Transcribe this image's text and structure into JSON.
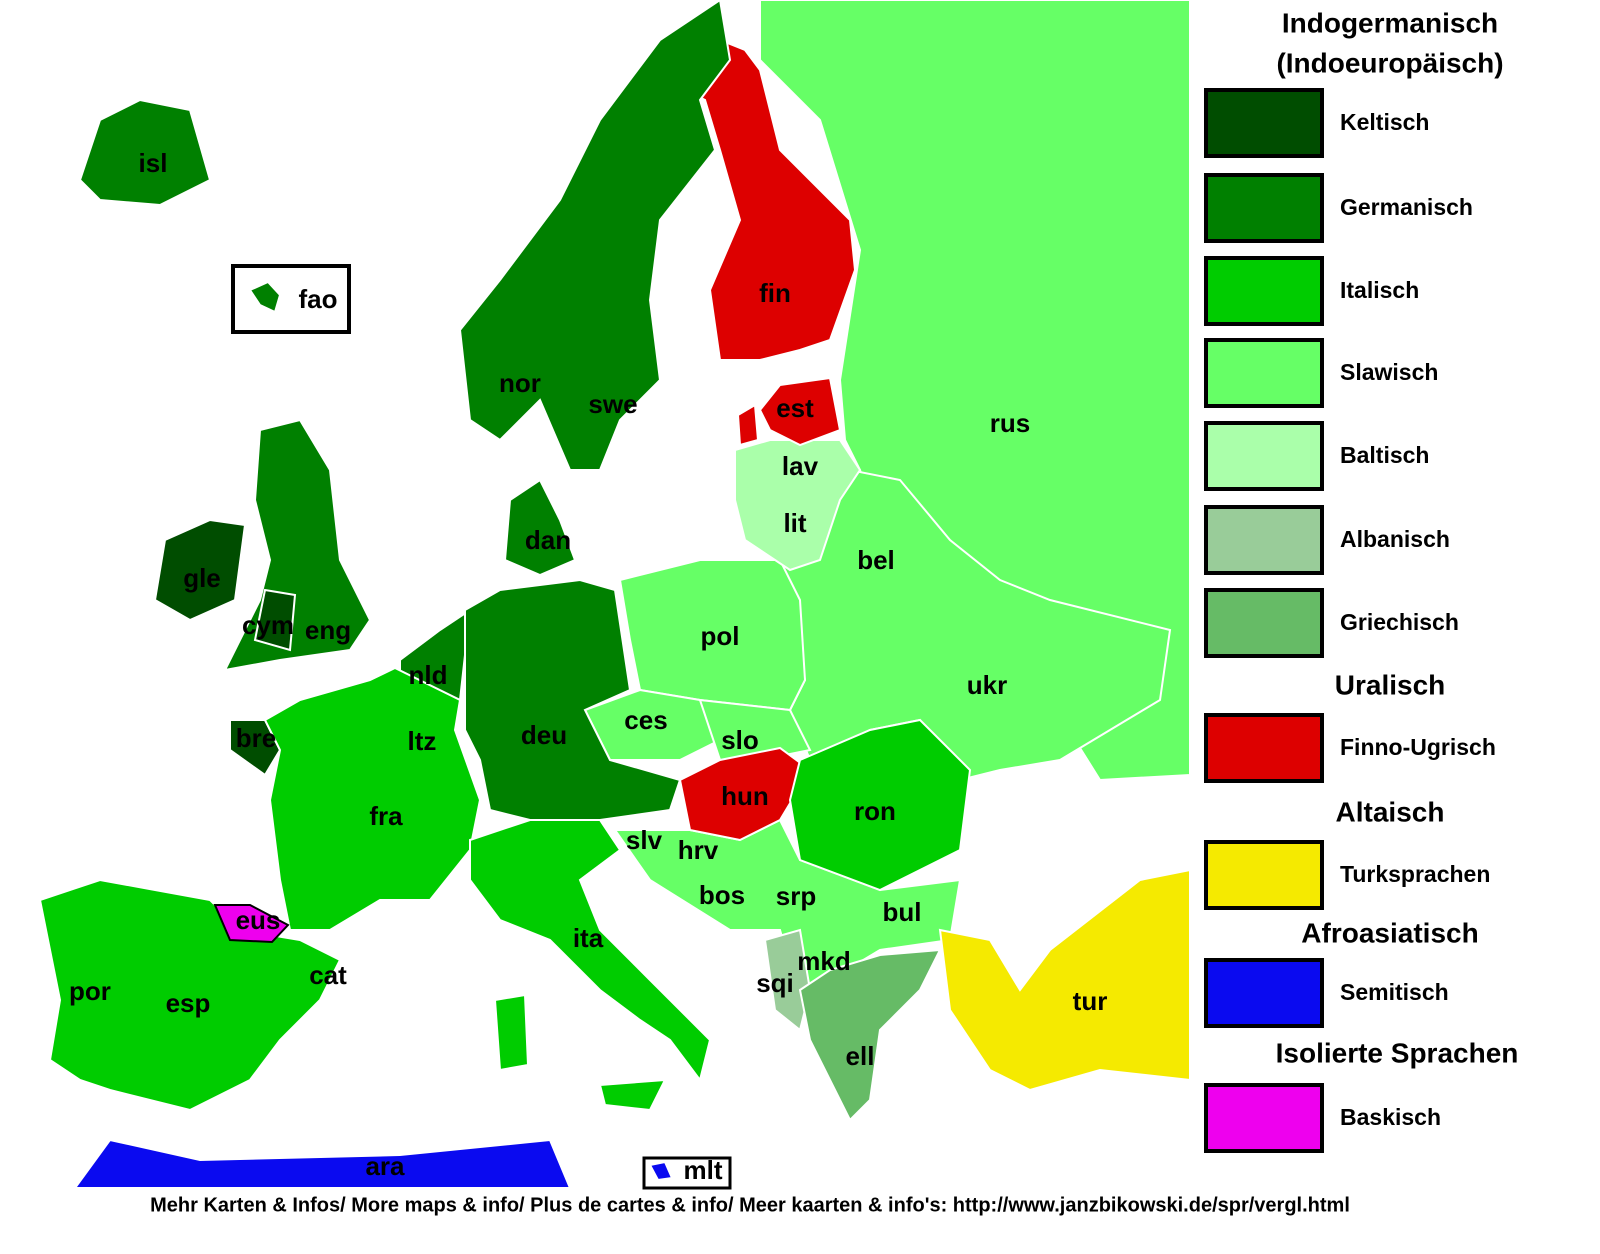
{
  "legend": {
    "groups": [
      {
        "title": "Indogermanisch",
        "subtitle": "(Indoeuropäisch)",
        "items": [
          {
            "label": "Keltisch",
            "color": "#004d00"
          },
          {
            "label": "Germanisch",
            "color": "#008000"
          },
          {
            "label": "Italisch",
            "color": "#00cc00"
          },
          {
            "label": "Slawisch",
            "color": "#66ff66"
          },
          {
            "label": "Baltisch",
            "color": "#aaffaa"
          },
          {
            "label": "Albanisch",
            "color": "#99cc99"
          },
          {
            "label": "Griechisch",
            "color": "#66bb66"
          }
        ]
      },
      {
        "title": "Uralisch",
        "items": [
          {
            "label": "Finno-Ugrisch",
            "color": "#dd0000"
          }
        ]
      },
      {
        "title": "Altaisch",
        "items": [
          {
            "label": "Turksprachen",
            "color": "#f5ea00"
          }
        ]
      },
      {
        "title": "Afroasiatisch",
        "items": [
          {
            "label": "Semitisch",
            "color": "#0a0af0"
          }
        ]
      },
      {
        "title": "Isolierte Sprachen",
        "items": [
          {
            "label": "Baskisch",
            "color": "#ee00ee"
          }
        ]
      }
    ]
  },
  "map": {
    "labels": [
      "isl",
      "fao",
      "nor",
      "swe",
      "fin",
      "est",
      "rus",
      "lav",
      "lit",
      "dan",
      "gle",
      "cym",
      "eng",
      "bel",
      "pol",
      "nld",
      "ukr",
      "ltz",
      "deu",
      "ces",
      "slo",
      "bre",
      "hun",
      "fra",
      "ron",
      "slv",
      "hrv",
      "bos",
      "srp",
      "bul",
      "eus",
      "ita",
      "mkd",
      "cat",
      "sqi",
      "por",
      "esp",
      "tur",
      "ell",
      "ara",
      "mlt"
    ]
  },
  "footer": "Mehr Karten & Infos/ More maps & info/ Plus de cartes & info/ Meer kaarten & info's: http://www.janzbikowski.de/spr/vergl.html"
}
